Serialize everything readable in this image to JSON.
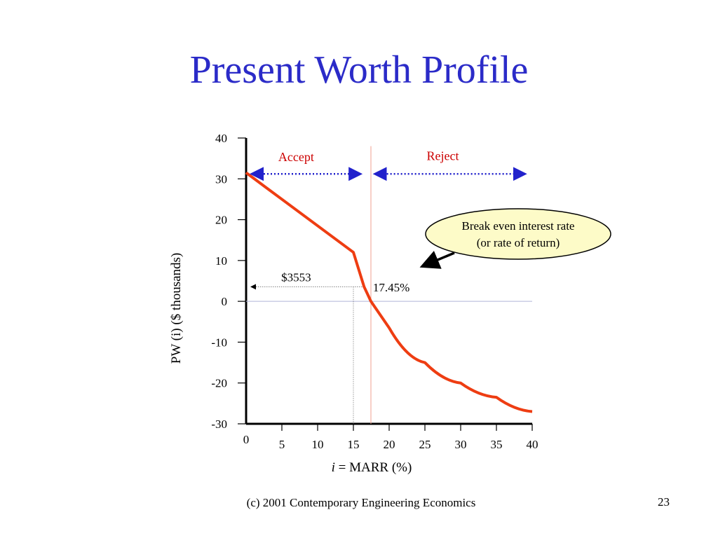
{
  "slide": {
    "title": "Present Worth Profile",
    "footer": "(c) 2001 Contemporary Engineering Economics",
    "page_number": "23"
  },
  "colors": {
    "title": "#2b2bc8",
    "curve": "#ee3d12",
    "axis": "#000000",
    "arrow_dotted": "#2222cc",
    "accept_text": "#cc0000",
    "reject_text": "#cc0000",
    "callout_fill": "#fdfbc8",
    "irr_line": "#f0a090",
    "zero_line": "#b0b4d8"
  },
  "chart_data": {
    "type": "line",
    "x": [
      0,
      5,
      10,
      15,
      16.5,
      17.45,
      20,
      25,
      30,
      35,
      40
    ],
    "series": [
      {
        "values": [
          31.5,
          25.0,
          18.5,
          12.0,
          3.553,
          0,
          -6.5,
          -15.0,
          -20.0,
          -23.5,
          -27.0
        ]
      }
    ],
    "xlabel_italic": "i",
    "xlabel_rest": " = MARR (%)",
    "ylabel": "PW (i) ($ thousands)",
    "xlim": [
      0,
      40
    ],
    "ylim": [
      -30,
      40
    ],
    "x_ticks": [
      0,
      5,
      10,
      15,
      20,
      25,
      30,
      35,
      40
    ],
    "x_tick_labels": [
      "0",
      "5",
      "10",
      "15",
      "20",
      "25",
      "30",
      "35",
      "40"
    ],
    "y_ticks": [
      40,
      30,
      20,
      10,
      0,
      -10,
      -20,
      -30
    ],
    "y_tick_labels": [
      "40",
      "30",
      "20",
      "10",
      "0",
      "-10",
      "-20",
      "-30"
    ],
    "grid": false,
    "legend": "none",
    "annotations": {
      "accept": "Accept",
      "reject": "Reject",
      "pw_value": "$3553",
      "irr": "17.45%",
      "callout_line1": "Break even interest rate",
      "callout_line2": "(or rate of return)"
    }
  }
}
